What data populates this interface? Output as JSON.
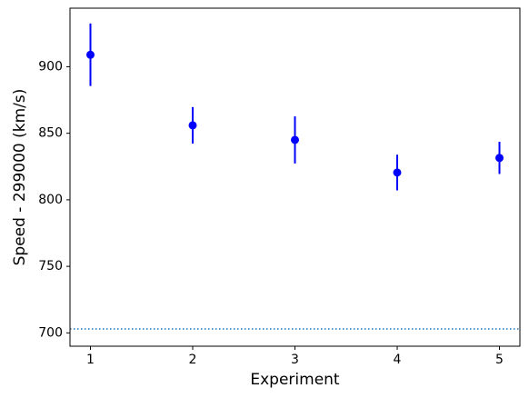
{
  "chart_data": {
    "type": "errorbar",
    "x": [
      1,
      2,
      3,
      4,
      5
    ],
    "values": [
      909,
      856,
      845,
      820.5,
      831.5
    ],
    "errors": [
      23.5,
      13.7,
      17.7,
      13.4,
      12.1
    ],
    "color": "#0000ff",
    "hline": {
      "value": 703,
      "color": "#1f77b4",
      "style": "dotted"
    },
    "xlabel": "Experiment",
    "ylabel": "Speed - 299000 (km/s)",
    "xlim": [
      0.8,
      5.2
    ],
    "xticks": [
      1,
      2,
      3,
      4,
      5
    ],
    "ylim": [
      690,
      944
    ],
    "yticks": [
      700,
      750,
      800,
      850,
      900
    ]
  }
}
